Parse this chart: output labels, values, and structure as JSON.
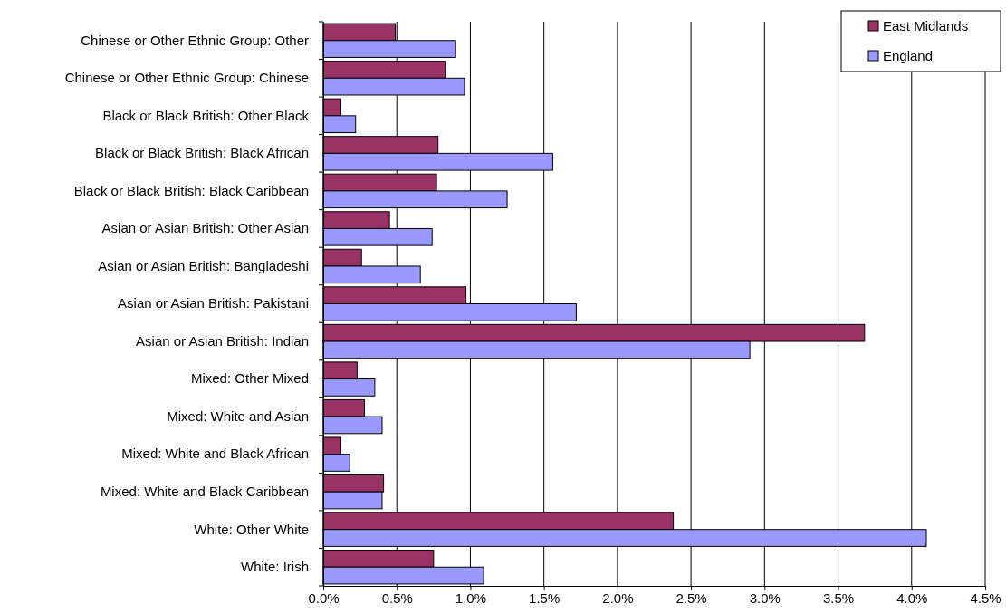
{
  "chart_data": {
    "type": "bar",
    "orientation": "horizontal",
    "categories": [
      "Chinese or Other Ethnic Group: Other",
      "Chinese or Other Ethnic Group: Chinese",
      "Black or Black British: Other Black",
      "Black or Black British: Black African",
      "Black or Black British: Black Caribbean",
      "Asian or Asian British: Other Asian",
      "Asian or Asian British: Bangladeshi",
      "Asian or Asian British: Pakistani",
      "Asian or Asian British: Indian",
      "Mixed: Other Mixed",
      "Mixed: White and Asian",
      "Mixed: White and Black African",
      "Mixed: White and Black Caribbean",
      "White: Other White",
      "White: Irish"
    ],
    "series": [
      {
        "name": "East Midlands",
        "color": "#993366",
        "values": [
          0.49,
          0.83,
          0.12,
          0.78,
          0.77,
          0.45,
          0.26,
          0.97,
          3.68,
          0.23,
          0.28,
          0.12,
          0.41,
          2.38,
          0.75
        ]
      },
      {
        "name": "England",
        "color": "#9999ff",
        "values": [
          0.9,
          0.96,
          0.22,
          1.56,
          1.25,
          0.74,
          0.66,
          1.72,
          2.9,
          0.35,
          0.4,
          0.18,
          0.4,
          4.1,
          1.09
        ]
      }
    ],
    "xlim": [
      0,
      4.5
    ],
    "xticks": [
      {
        "value": 0,
        "label": "0.0%"
      },
      {
        "value": 0.5,
        "label": "0.5%"
      },
      {
        "value": 1,
        "label": "1.0%"
      },
      {
        "value": 1.5,
        "label": "1.5%"
      },
      {
        "value": 2,
        "label": "2.0%"
      },
      {
        "value": 2.5,
        "label": "2.5%"
      },
      {
        "value": 3,
        "label": "3.0%"
      },
      {
        "value": 3.5,
        "label": "3.5%"
      },
      {
        "value": 4,
        "label": "4.0%"
      },
      {
        "value": 4.5,
        "label": "4.5%"
      }
    ],
    "grid": "x",
    "legend": "top right"
  }
}
